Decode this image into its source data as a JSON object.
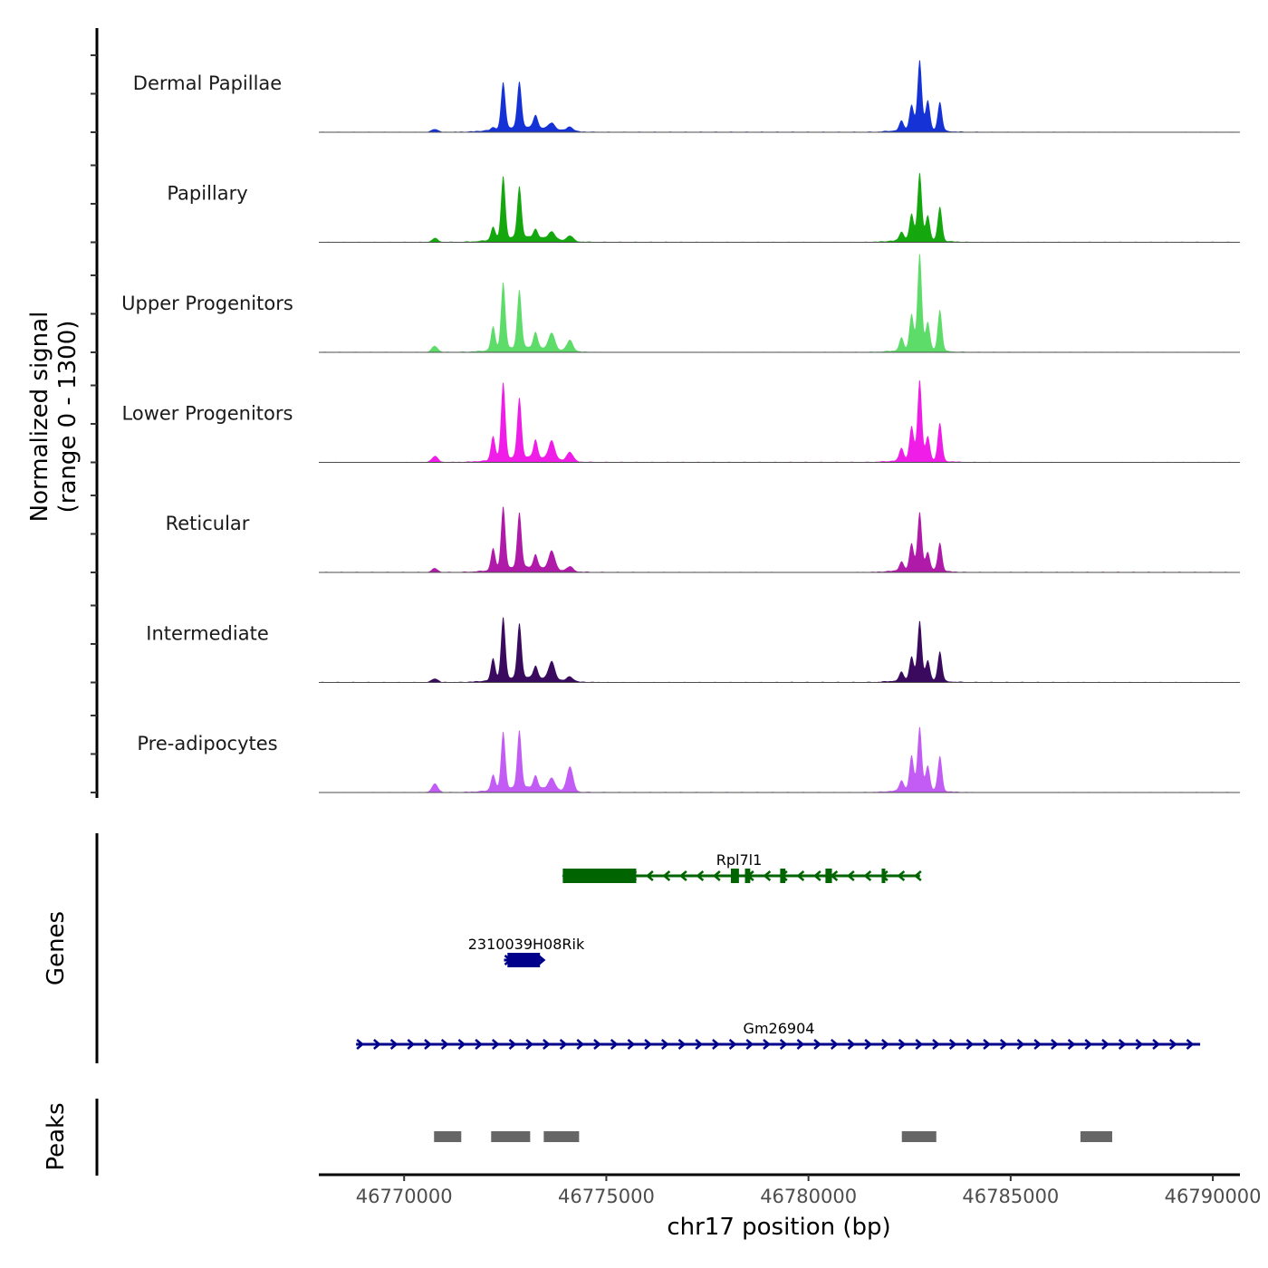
{
  "chart_data": {
    "type": "area",
    "title": "",
    "chromosome": "chr17",
    "xlabel": "chr17 position (bp)",
    "ylabel": "Normalized signal",
    "ylabel_sub": "(range 0 - 1300)",
    "xlim": [
      46767890,
      46790670
    ],
    "ylim": [
      0,
      1300
    ],
    "x_ticks": [
      46770000,
      46775000,
      46780000,
      46785000,
      46790000
    ],
    "x_tick_labels": [
      "46770000",
      "46775000",
      "46780000",
      "46785000",
      "46790000"
    ],
    "y_ticks_per_track": 3,
    "grid": false,
    "legend": "none",
    "summit_positions": [
      46770760,
      46772200,
      46772450,
      46772850,
      46773250,
      46773650,
      46774100,
      46782300,
      46782550,
      46782750,
      46782950,
      46783250
    ],
    "series": [
      {
        "name": "Dermal Papillae",
        "color": "#1432d6",
        "values": [
          40,
          30,
          600,
          590,
          160,
          80,
          55,
          120,
          320,
          900,
          380,
          370
        ]
      },
      {
        "name": "Papillary",
        "color": "#14a80e",
        "values": [
          50,
          170,
          810,
          660,
          110,
          100,
          70,
          110,
          330,
          860,
          310,
          440
        ]
      },
      {
        "name": "Upper Progenitors",
        "color": "#5ddc6a",
        "values": [
          80,
          300,
          860,
          740,
          200,
          210,
          140,
          160,
          460,
          1240,
          360,
          530
        ]
      },
      {
        "name": "Lower Progenitors",
        "color": "#f01ce8",
        "values": [
          80,
          310,
          990,
          770,
          230,
          240,
          120,
          160,
          430,
          1030,
          300,
          490
        ]
      },
      {
        "name": "Reticular",
        "color": "#b01aa8",
        "values": [
          50,
          280,
          810,
          710,
          170,
          240,
          60,
          110,
          340,
          740,
          230,
          360
        ]
      },
      {
        "name": "Intermediate",
        "color": "#3a0a5e",
        "values": [
          50,
          280,
          800,
          700,
          150,
          230,
          60,
          110,
          300,
          760,
          250,
          380
        ]
      },
      {
        "name": "Pre-adipocytes",
        "color": "#c25cf5",
        "values": [
          110,
          200,
          740,
          740,
          160,
          150,
          320,
          130,
          440,
          810,
          310,
          450
        ]
      }
    ],
    "genes": [
      {
        "name": "Rpl7l1",
        "strand": "-",
        "color": "#006400",
        "start": 46773924,
        "end": 46782758,
        "exons": [
          [
            46773924,
            46775740
          ],
          [
            46778080,
            46778280
          ],
          [
            46778430,
            46778560
          ],
          [
            46779300,
            46779430
          ],
          [
            46780420,
            46780580
          ],
          [
            46781810,
            46781900
          ]
        ]
      },
      {
        "name": "2310039H08Rik",
        "strand": "+",
        "color": "#00008b",
        "start": 46772470,
        "end": 46773430,
        "exons": [
          [
            46772556,
            46773360
          ]
        ]
      },
      {
        "name": "Gm26904",
        "strand": "+",
        "color": "#00008b",
        "start": 46768812,
        "end": 46789686,
        "exons": []
      }
    ],
    "genes_label": "Genes",
    "peaks_label": "Peaks",
    "peaks_color": "#666666",
    "peaks": [
      [
        46770740,
        46771413
      ],
      [
        46772152,
        46773117
      ],
      [
        46773453,
        46774327
      ],
      [
        46782309,
        46783161
      ],
      [
        46786726,
        46787511
      ]
    ]
  }
}
